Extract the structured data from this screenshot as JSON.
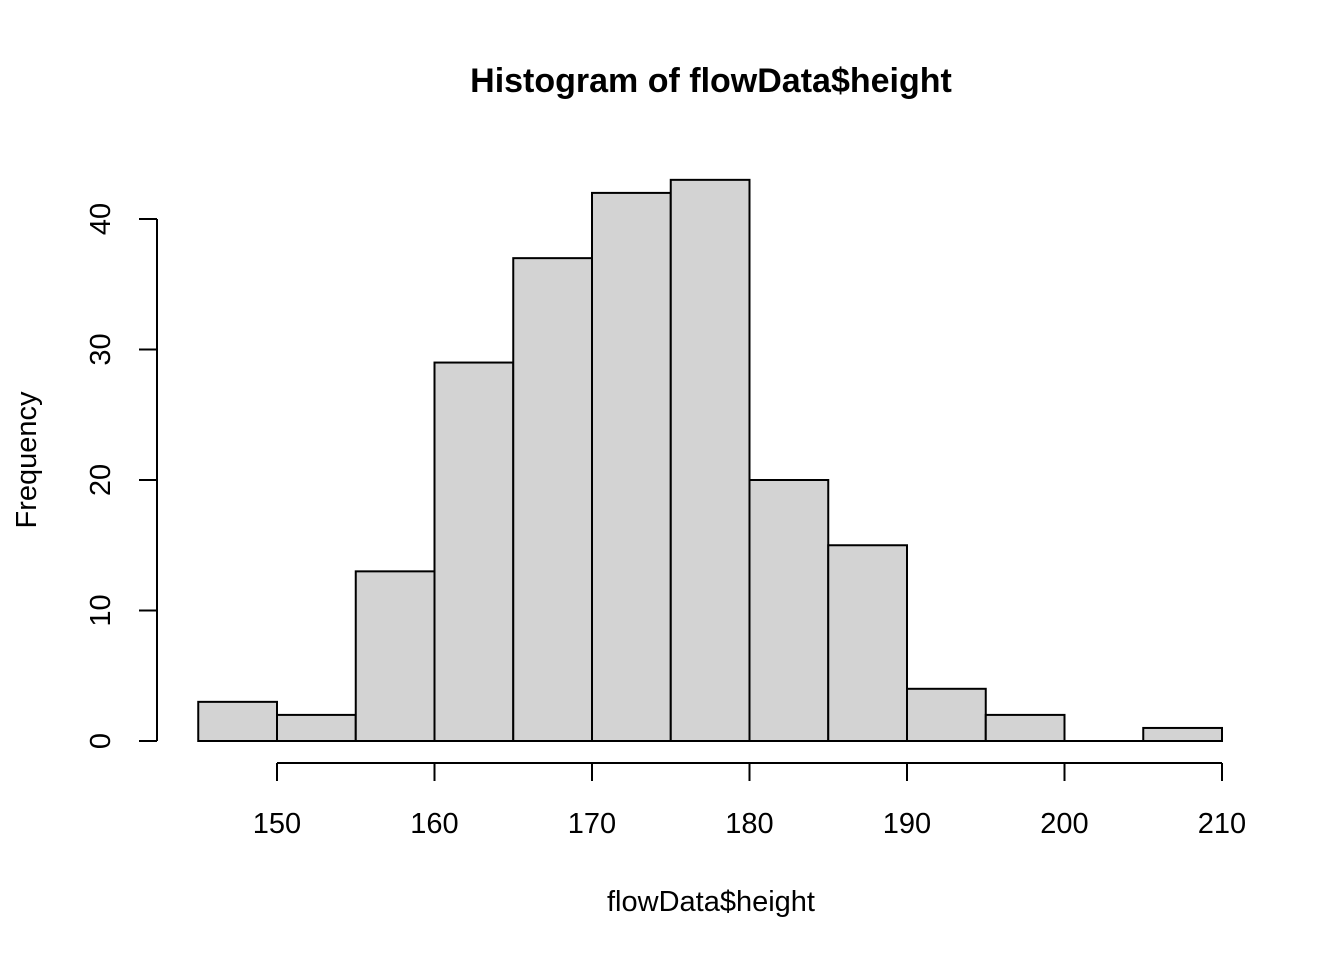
{
  "chart_data": {
    "type": "bar",
    "title": "Histogram of flowData$height",
    "xlabel": "flowData$height",
    "ylabel": "Frequency",
    "bin_edges": [
      145,
      150,
      155,
      160,
      165,
      170,
      175,
      180,
      185,
      190,
      195,
      200,
      205,
      210
    ],
    "values": [
      3,
      2,
      13,
      29,
      37,
      42,
      43,
      20,
      15,
      4,
      2,
      0,
      1
    ],
    "x_ticks": [
      150,
      160,
      170,
      180,
      190,
      200,
      210
    ],
    "y_ticks": [
      0,
      10,
      20,
      30,
      40
    ],
    "xlim": [
      145,
      210
    ],
    "ylim": [
      0,
      43
    ],
    "colors": {
      "bar_fill": "#d3d3d3",
      "bar_stroke": "#000000"
    },
    "grid": false
  }
}
